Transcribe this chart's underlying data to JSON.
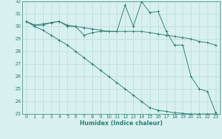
{
  "xlabel": "Humidex (Indice chaleur)",
  "x": [
    0,
    1,
    2,
    3,
    4,
    5,
    6,
    7,
    8,
    9,
    10,
    11,
    12,
    13,
    14,
    15,
    16,
    17,
    18,
    19,
    20,
    21,
    22,
    23
  ],
  "line1": [
    30.4,
    30.1,
    30.1,
    30.3,
    30.4,
    30.0,
    30.0,
    29.3,
    29.5,
    29.6,
    29.6,
    29.6,
    31.7,
    30.0,
    32.0,
    31.1,
    31.2,
    29.6,
    28.5,
    28.5,
    26.0,
    25.0,
    24.8,
    23.1
  ],
  "line2": [
    30.4,
    30.1,
    30.2,
    30.3,
    30.4,
    30.1,
    30.0,
    29.9,
    29.8,
    29.7,
    29.6,
    29.6,
    29.6,
    29.6,
    29.6,
    29.5,
    29.4,
    29.3,
    29.2,
    29.1,
    29.0,
    28.8,
    28.7,
    28.5
  ],
  "line3": [
    30.4,
    30.0,
    29.7,
    29.3,
    28.9,
    28.5,
    28.0,
    27.5,
    27.0,
    26.5,
    26.0,
    25.5,
    25.0,
    24.5,
    24.0,
    23.5,
    23.3,
    23.2,
    23.1,
    23.05,
    23.0,
    23.0,
    23.0,
    23.0
  ],
  "line_color": "#2e7d72",
  "bg_color": "#d8f0f0",
  "grid_color": "#b8d8d8",
  "ylim": [
    23,
    32
  ],
  "xlim": [
    -0.5,
    23.5
  ],
  "yticks": [
    23,
    24,
    25,
    26,
    27,
    28,
    29,
    30,
    31,
    32
  ],
  "xticks": [
    0,
    1,
    2,
    3,
    4,
    5,
    6,
    7,
    8,
    9,
    10,
    11,
    12,
    13,
    14,
    15,
    16,
    17,
    18,
    19,
    20,
    21,
    22,
    23
  ],
  "marker": "+",
  "markersize": 3,
  "linewidth": 0.7,
  "tick_fontsize": 5.0,
  "xlabel_fontsize": 6.0
}
